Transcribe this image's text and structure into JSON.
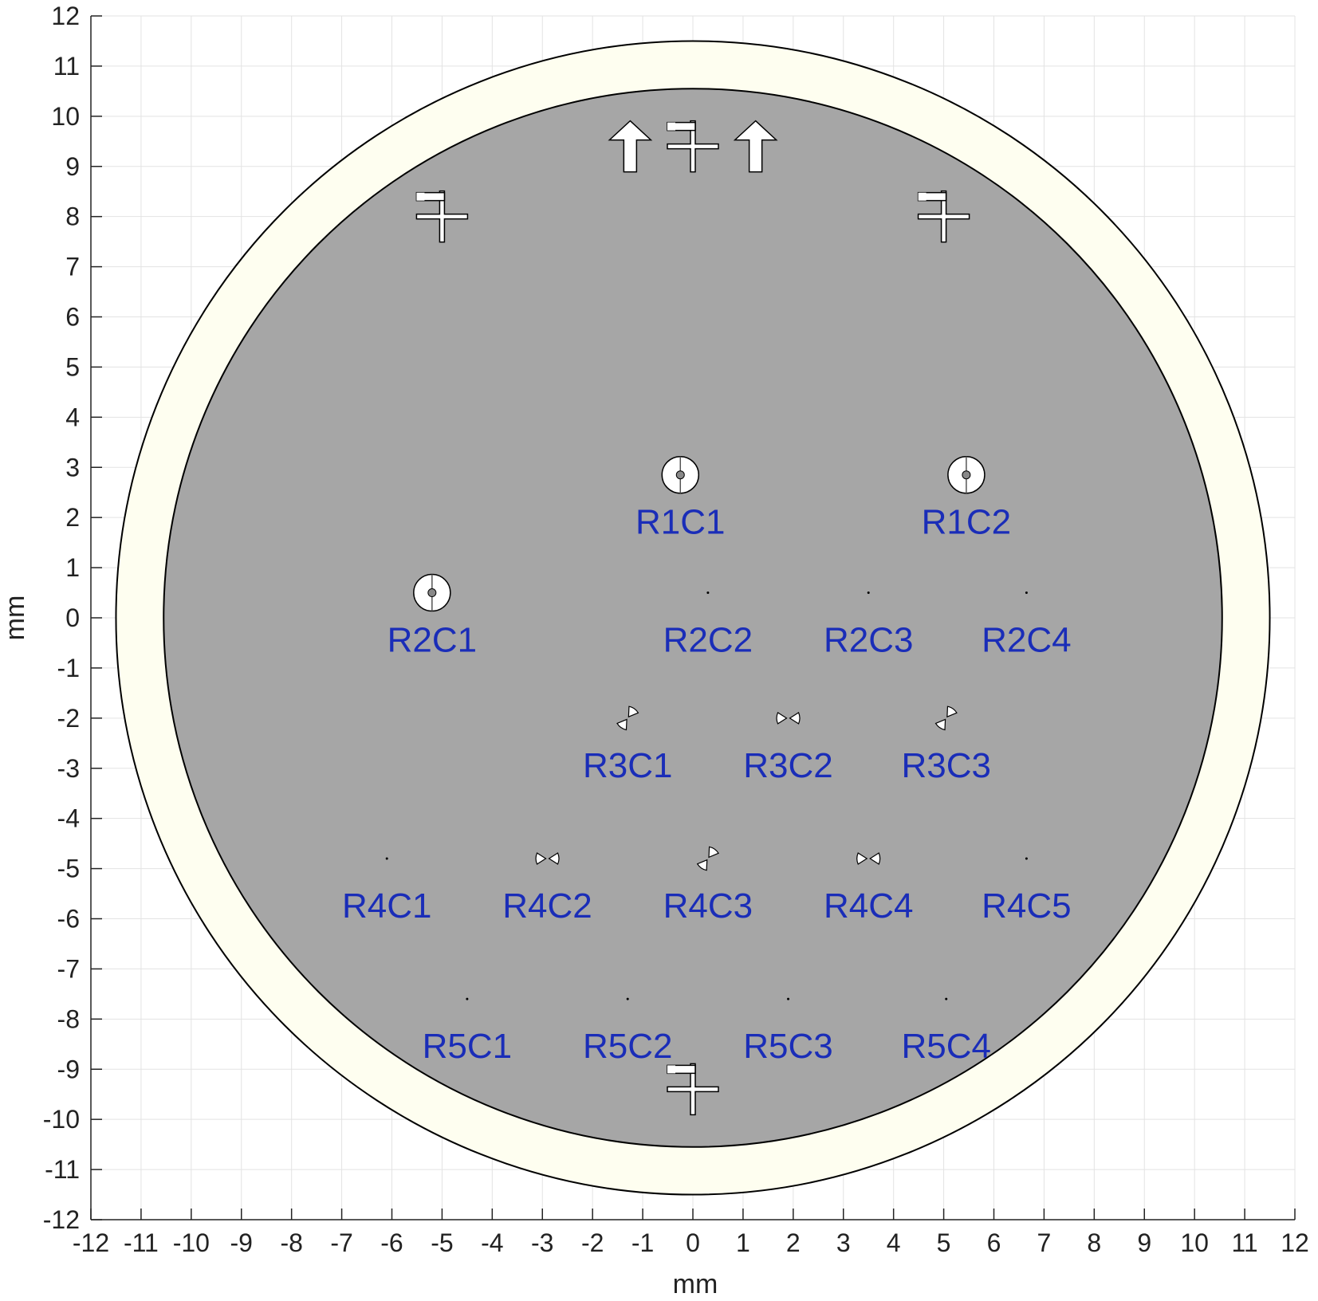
{
  "chart_data": {
    "type": "diagram",
    "title": "",
    "xlabel": "mm",
    "ylabel": "mm",
    "xlim": [
      -12,
      12
    ],
    "ylim": [
      -12,
      12
    ],
    "xticks": [
      "-12",
      "-11",
      "-10",
      "-9",
      "-8",
      "-7",
      "-6",
      "-5",
      "-4",
      "-3",
      "-2",
      "-1",
      "0",
      "1",
      "2",
      "3",
      "4",
      "5",
      "6",
      "7",
      "8",
      "9",
      "10",
      "11",
      "12"
    ],
    "yticks": [
      "12",
      "11",
      "10",
      "9",
      "8",
      "7",
      "6",
      "5",
      "4",
      "3",
      "2",
      "1",
      "0",
      "-1",
      "-2",
      "-3",
      "-4",
      "-5",
      "-6",
      "-7",
      "-8",
      "-9",
      "-10",
      "-11",
      "-12"
    ],
    "grid": true,
    "colors": {
      "substrate": "#FEFEF0",
      "wafer": "#A6A6A6",
      "label": "#1A2DB8",
      "outline": "#000000",
      "marker": "#FFFFFF"
    },
    "substrate_circle": {
      "cx": 0,
      "cy": 0,
      "r": 11.5
    },
    "wafer_circle": {
      "cx": 0,
      "cy": 0,
      "r": 10.55
    },
    "cross_marks": [
      {
        "x": -5.0,
        "y": 8.0
      },
      {
        "x": 0.0,
        "y": 9.4
      },
      {
        "x": 5.0,
        "y": 8.0
      },
      {
        "x": 0.0,
        "y": -9.4
      }
    ],
    "arrow_marks": [
      {
        "x": -1.25,
        "y": 9.4,
        "direction": "up"
      },
      {
        "x": 1.25,
        "y": 9.4,
        "direction": "up"
      }
    ],
    "devices": [
      {
        "label": "R1C1",
        "x": -0.25,
        "y": 2.85,
        "shape": "ring"
      },
      {
        "label": "R1C2",
        "x": 5.45,
        "y": 2.85,
        "shape": "ring"
      },
      {
        "label": "R2C1",
        "x": -5.2,
        "y": 0.5,
        "shape": "ring"
      },
      {
        "label": "R2C2",
        "x": 0.3,
        "y": 0.5,
        "shape": "dot"
      },
      {
        "label": "R2C3",
        "x": 3.5,
        "y": 0.5,
        "shape": "dot"
      },
      {
        "label": "R2C4",
        "x": 6.65,
        "y": 0.5,
        "shape": "dot"
      },
      {
        "label": "R3C1",
        "x": -1.3,
        "y": -2.0,
        "shape": "bowtie",
        "angle": -55
      },
      {
        "label": "R3C2",
        "x": 1.9,
        "y": -2.0,
        "shape": "bowtie",
        "angle": 0
      },
      {
        "label": "R3C3",
        "x": 5.05,
        "y": -2.0,
        "shape": "bowtie",
        "angle": -55
      },
      {
        "label": "R4C1",
        "x": -6.1,
        "y": -4.8,
        "shape": "dot"
      },
      {
        "label": "R4C2",
        "x": -2.9,
        "y": -4.8,
        "shape": "bowtie",
        "angle": 0
      },
      {
        "label": "R4C3",
        "x": 0.3,
        "y": -4.8,
        "shape": "bowtie",
        "angle": -55
      },
      {
        "label": "R4C4",
        "x": 3.5,
        "y": -4.8,
        "shape": "bowtie",
        "angle": 0
      },
      {
        "label": "R4C5",
        "x": 6.65,
        "y": -4.8,
        "shape": "dot"
      },
      {
        "label": "R5C1",
        "x": -4.5,
        "y": -7.6,
        "shape": "dot"
      },
      {
        "label": "R5C2",
        "x": -1.3,
        "y": -7.6,
        "shape": "dot"
      },
      {
        "label": "R5C3",
        "x": 1.9,
        "y": -7.6,
        "shape": "dot"
      },
      {
        "label": "R5C4",
        "x": 5.05,
        "y": -7.6,
        "shape": "dot"
      }
    ]
  }
}
